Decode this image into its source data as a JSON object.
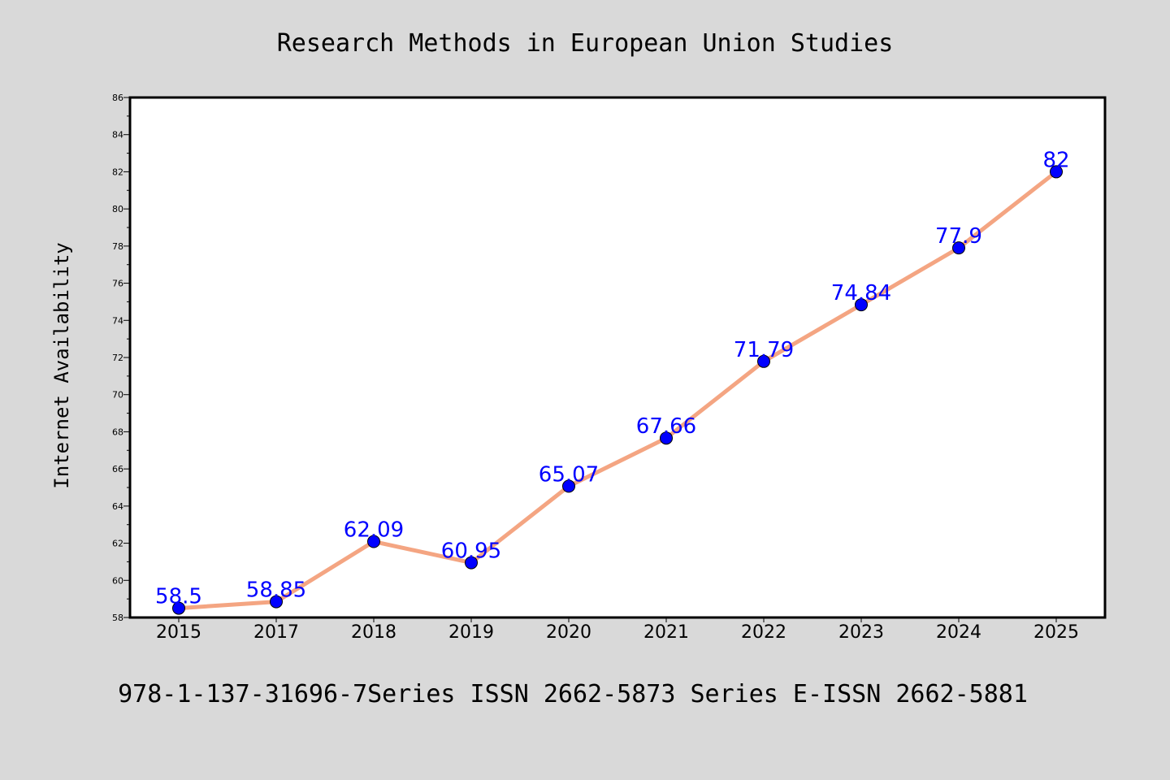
{
  "colors": {
    "background": "#d9d9d9",
    "plot_background": "#ffffff",
    "line": "#f4a582",
    "marker": "#0000ff",
    "label": "#0000ff"
  },
  "chart_data": {
    "type": "line",
    "title": "Research Methods in European Union Studies",
    "xlabel": "",
    "ylabel": "Internet Availability",
    "footer": "978-1-137-31696-7Series ISSN 2662-5873 Series E-ISSN 2662-5881",
    "categories": [
      "2015",
      "2017",
      "2018",
      "2019",
      "2020",
      "2021",
      "2022",
      "2023",
      "2024",
      "2025"
    ],
    "series": [
      {
        "values": [
          58.5,
          58.85,
          62.09,
          60.95,
          65.07,
          67.66,
          71.79,
          74.84,
          77.9,
          82
        ],
        "labels": [
          "58.5",
          "58.85",
          "62.09",
          "60.95",
          "65.07",
          "67.66",
          "71.79",
          "74.84",
          "77.9",
          "82"
        ]
      }
    ],
    "ylim": [
      58,
      86
    ],
    "yticks": [
      58,
      60,
      62,
      64,
      66,
      68,
      70,
      72,
      74,
      76,
      78,
      80,
      82,
      84,
      86
    ],
    "grid": false,
    "legend": "none"
  }
}
